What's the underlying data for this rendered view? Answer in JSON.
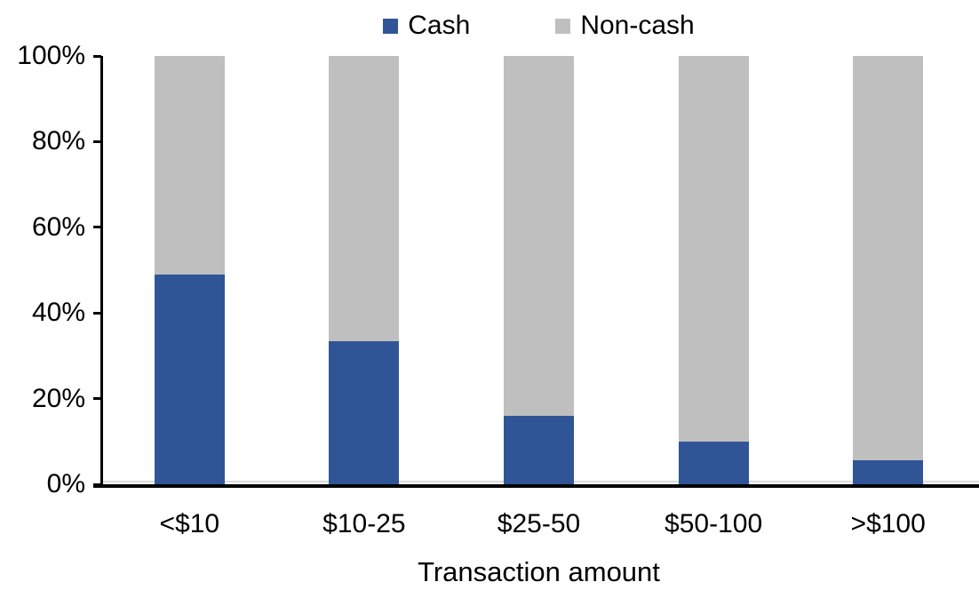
{
  "chart_data": {
    "type": "bar",
    "subtype": "stacked-100-percent",
    "title": "",
    "xlabel": "Transaction amount",
    "ylabel": "",
    "categories": [
      "<$10",
      "$10-25",
      "$25-50",
      "$50-100",
      ">$100"
    ],
    "series": [
      {
        "name": "Cash",
        "color": "#2F5597",
        "values": [
          49,
          33.5,
          16,
          10,
          5.5
        ]
      },
      {
        "name": "Non-cash",
        "color": "#BFBFBF",
        "values": [
          51,
          66.5,
          84,
          90,
          94.5
        ]
      }
    ],
    "ylim": [
      0,
      100
    ],
    "ytick_values": [
      0,
      20,
      40,
      60,
      80,
      100
    ],
    "ytick_labels": [
      "0%",
      "20%",
      "40%",
      "60%",
      "80%",
      "100%"
    ],
    "legend_position": "top-center",
    "grid": false,
    "axis_color": "#000000",
    "background_color": "#FFFFFF"
  }
}
